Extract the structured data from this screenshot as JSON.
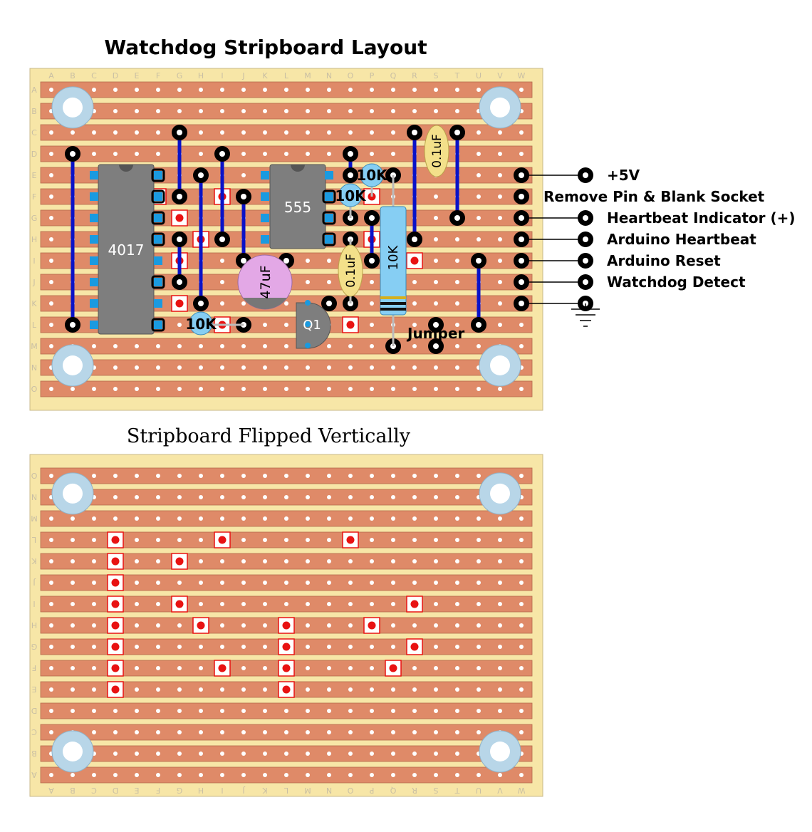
{
  "titles": {
    "top": "Watchdog Stripboard Layout",
    "bottom": "Stripboard Flipped Vertically"
  },
  "board": {
    "columns": [
      "A",
      "B",
      "C",
      "D",
      "E",
      "F",
      "G",
      "H",
      "I",
      "J",
      "K",
      "L",
      "M",
      "N",
      "O",
      "P",
      "Q",
      "R",
      "S",
      "T",
      "U",
      "V",
      "W"
    ],
    "rows": [
      "A",
      "B",
      "C",
      "D",
      "E",
      "F",
      "G",
      "H",
      "I",
      "J",
      "K",
      "L",
      "M",
      "N",
      "O"
    ]
  },
  "colors": {
    "board": "#f7e6a7",
    "strip": "#df8a68",
    "wire": "#0a12c8",
    "cut": "#e81212",
    "ic": "#7e7e7e",
    "pin": "#1a9ae0"
  },
  "components": {
    "ic_4017": "4017",
    "ic_555": "555",
    "cap_47uf": "47uF",
    "cap_01uf_top": "0.1uF",
    "cap_01uf_mid": "0.1uF",
    "res_10k_long": "10K",
    "res_10k_a": "10K",
    "res_10k_b": "10K",
    "res_10k_c": "10K",
    "transistor": "Q1",
    "jumper": "Jumper"
  },
  "connections": [
    "+5V",
    "Remove Pin & Blank Socket",
    "Heartbeat Indicator (+)",
    "Arduino Heartbeat",
    "Arduino Reset",
    "Watchdog Detect"
  ],
  "cuts_top": [
    [
      "F",
      "F"
    ],
    [
      "I",
      "F"
    ],
    [
      "P",
      "F"
    ],
    [
      "G",
      "G"
    ],
    [
      "H",
      "H"
    ],
    [
      "P",
      "H"
    ],
    [
      "G",
      "I"
    ],
    [
      "R",
      "I"
    ],
    [
      "G",
      "K"
    ],
    [
      "I",
      "L"
    ],
    [
      "O",
      "L"
    ]
  ],
  "cuts_bottom": [
    [
      "D",
      "L"
    ],
    [
      "I",
      "L"
    ],
    [
      "O",
      "L"
    ],
    [
      "D",
      "K"
    ],
    [
      "G",
      "K"
    ],
    [
      "D",
      "J"
    ],
    [
      "D",
      "I"
    ],
    [
      "G",
      "I"
    ],
    [
      "R",
      "I"
    ],
    [
      "D",
      "H"
    ],
    [
      "H",
      "H"
    ],
    [
      "L",
      "H"
    ],
    [
      "P",
      "H"
    ],
    [
      "D",
      "G"
    ],
    [
      "L",
      "G"
    ],
    [
      "R",
      "G"
    ],
    [
      "D",
      "F"
    ],
    [
      "I",
      "F"
    ],
    [
      "L",
      "F"
    ],
    [
      "Q",
      "F"
    ],
    [
      "D",
      "E"
    ],
    [
      "L",
      "E"
    ]
  ]
}
